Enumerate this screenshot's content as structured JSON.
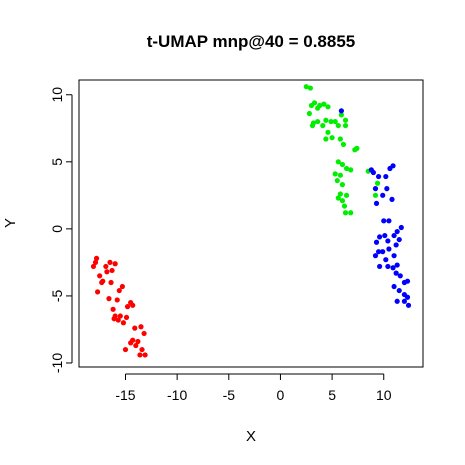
{
  "chart_data": {
    "type": "scatter",
    "title": "t-UMAP mnp@40 = 0.8855",
    "xlabel": "X",
    "ylabel": "Y",
    "xlim": [
      -19.5,
      13.8
    ],
    "ylim": [
      -10.3,
      11.1
    ],
    "xticks": [
      -15,
      -10,
      -5,
      0,
      5,
      10
    ],
    "yticks": [
      -10,
      -5,
      0,
      5,
      10
    ],
    "grid": false,
    "legend": "none",
    "series": [
      {
        "color": "#ff0000",
        "points": [
          [
            -18.1,
            -2.8
          ],
          [
            -17.8,
            -2.2
          ],
          [
            -17.5,
            -3.5
          ],
          [
            -17.3,
            -4.0
          ],
          [
            -17.7,
            -4.7
          ],
          [
            -16.8,
            -3.2
          ],
          [
            -16.9,
            -2.8
          ],
          [
            -17.2,
            -3.9
          ],
          [
            -16.5,
            -2.5
          ],
          [
            -16.3,
            -3.1
          ],
          [
            -16.0,
            -2.6
          ],
          [
            -16.4,
            -4.0
          ],
          [
            -16.6,
            -5.2
          ],
          [
            -16.2,
            -6.0
          ],
          [
            -15.8,
            -5.3
          ],
          [
            -15.6,
            -4.6
          ],
          [
            -15.3,
            -4.3
          ],
          [
            -16.0,
            -6.5
          ],
          [
            -15.7,
            -6.8
          ],
          [
            -15.5,
            -6.5
          ],
          [
            -15.2,
            -7.0
          ],
          [
            -14.8,
            -5.8
          ],
          [
            -14.5,
            -5.5
          ],
          [
            -14.3,
            -5.7
          ],
          [
            -14.1,
            -7.4
          ],
          [
            -14.3,
            -8.3
          ],
          [
            -14.0,
            -8.7
          ],
          [
            -13.8,
            -8.4
          ],
          [
            -13.5,
            -7.3
          ],
          [
            -13.2,
            -7.8
          ],
          [
            -13.4,
            -9.0
          ],
          [
            -13.6,
            -9.4
          ],
          [
            -13.1,
            -9.4
          ],
          [
            -14.5,
            -8.5
          ],
          [
            -14.9,
            -6.6
          ],
          [
            -16.1,
            -6.7
          ],
          [
            -17.9,
            -2.5
          ],
          [
            -15.0,
            -9.0
          ]
        ]
      },
      {
        "color": "#00ee00",
        "points": [
          [
            2.5,
            10.6
          ],
          [
            2.9,
            10.5
          ],
          [
            3.0,
            9.2
          ],
          [
            3.3,
            9.4
          ],
          [
            2.8,
            8.6
          ],
          [
            3.6,
            9.0
          ],
          [
            3.8,
            9.2
          ],
          [
            4.2,
            9.3
          ],
          [
            4.6,
            9.1
          ],
          [
            3.2,
            7.9
          ],
          [
            3.6,
            8.0
          ],
          [
            3.1,
            7.7
          ],
          [
            4.4,
            8.1
          ],
          [
            4.1,
            7.7
          ],
          [
            4.6,
            7.2
          ],
          [
            4.9,
            8.0
          ],
          [
            5.3,
            8.0
          ],
          [
            5.6,
            7.7
          ],
          [
            5.9,
            8.5
          ],
          [
            6.3,
            8.1
          ],
          [
            5.0,
            6.8
          ],
          [
            4.4,
            6.7
          ],
          [
            5.8,
            6.7
          ],
          [
            6.3,
            7.7
          ],
          [
            6.1,
            6.3
          ],
          [
            5.6,
            5.0
          ],
          [
            6.0,
            4.8
          ],
          [
            6.4,
            4.5
          ],
          [
            5.8,
            4.0
          ],
          [
            5.3,
            4.1
          ],
          [
            5.5,
            3.6
          ],
          [
            6.0,
            3.3
          ],
          [
            6.8,
            4.4
          ],
          [
            5.8,
            2.6
          ],
          [
            5.6,
            2.3
          ],
          [
            6.0,
            2.1
          ],
          [
            6.4,
            2.5
          ],
          [
            6.2,
            1.7
          ],
          [
            6.8,
            1.2
          ],
          [
            6.3,
            1.2
          ],
          [
            7.2,
            5.9
          ],
          [
            7.4,
            6.0
          ],
          [
            8.5,
            4.3
          ],
          [
            9.4,
            3.4
          ],
          [
            9.2,
            2.5
          ]
        ]
      },
      {
        "color": "#0000ff",
        "points": [
          [
            5.9,
            8.8
          ],
          [
            8.8,
            4.4
          ],
          [
            9.0,
            4.2
          ],
          [
            9.5,
            3.9
          ],
          [
            9.2,
            3.0
          ],
          [
            9.9,
            2.5
          ],
          [
            9.3,
            1.9
          ],
          [
            10.6,
            4.5
          ],
          [
            10.9,
            4.7
          ],
          [
            10.2,
            3.9
          ],
          [
            10.3,
            3.0
          ],
          [
            10.8,
            2.2
          ],
          [
            10.0,
            0.6
          ],
          [
            10.5,
            0.6
          ],
          [
            10.1,
            -0.5
          ],
          [
            10.4,
            -0.9
          ],
          [
            9.6,
            -0.6
          ],
          [
            9.3,
            -1.0
          ],
          [
            9.5,
            -1.7
          ],
          [
            9.2,
            -2.0
          ],
          [
            9.9,
            -1.7
          ],
          [
            10.5,
            -1.5
          ],
          [
            10.2,
            -2.3
          ],
          [
            9.6,
            -2.8
          ],
          [
            10.4,
            -2.8
          ],
          [
            11.0,
            -0.5
          ],
          [
            11.3,
            -0.2
          ],
          [
            11.2,
            -1.2
          ],
          [
            11.5,
            -0.8
          ],
          [
            11.7,
            0.1
          ],
          [
            11.0,
            -2.0
          ],
          [
            11.3,
            -2.7
          ],
          [
            10.9,
            -2.9
          ],
          [
            11.2,
            -3.3
          ],
          [
            11.6,
            -3.5
          ],
          [
            11.0,
            -4.3
          ],
          [
            11.5,
            -4.6
          ],
          [
            11.3,
            -5.4
          ],
          [
            12.0,
            -4.0
          ],
          [
            12.3,
            -3.9
          ],
          [
            12.0,
            -4.9
          ],
          [
            12.3,
            -5.1
          ],
          [
            12.0,
            -5.4
          ],
          [
            12.4,
            -5.7
          ]
        ]
      }
    ]
  }
}
